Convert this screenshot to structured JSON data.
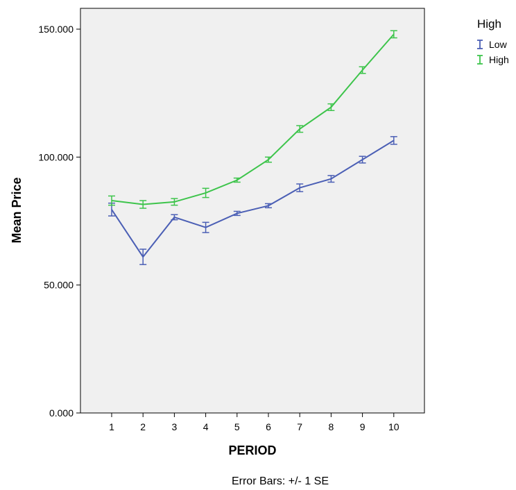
{
  "chart_data": {
    "type": "line",
    "xlabel": "PERIOD",
    "ylabel": "Mean Price",
    "categories": [
      "1",
      "2",
      "3",
      "4",
      "5",
      "6",
      "7",
      "8",
      "9",
      "10"
    ],
    "ylim": [
      0,
      150
    ],
    "yticks": [
      0,
      50,
      100,
      150
    ],
    "ytick_labels": [
      "0.000",
      "50.000",
      "100.000",
      "150.000"
    ],
    "legend_title": "High",
    "legend_position": "top-right",
    "grid": false,
    "background_color": "#f0f0f0",
    "footnote": "Error Bars: +/- 1 SE",
    "series": [
      {
        "name": "Low",
        "color": "#4b5fb5",
        "values": [
          79.5,
          61,
          76.5,
          72.5,
          78,
          81,
          88,
          91.5,
          99,
          106.5
        ],
        "se": [
          2.5,
          3,
          1,
          2,
          0.8,
          0.8,
          1.5,
          1.3,
          1.3,
          1.5
        ]
      },
      {
        "name": "High",
        "color": "#3dc44b",
        "values": [
          83,
          81.5,
          82.5,
          86,
          91,
          99,
          111,
          119.5,
          134,
          148
        ],
        "se": [
          1.8,
          1.5,
          1.3,
          1.8,
          0.8,
          1,
          1.3,
          1.3,
          1.3,
          1.4
        ]
      }
    ]
  }
}
